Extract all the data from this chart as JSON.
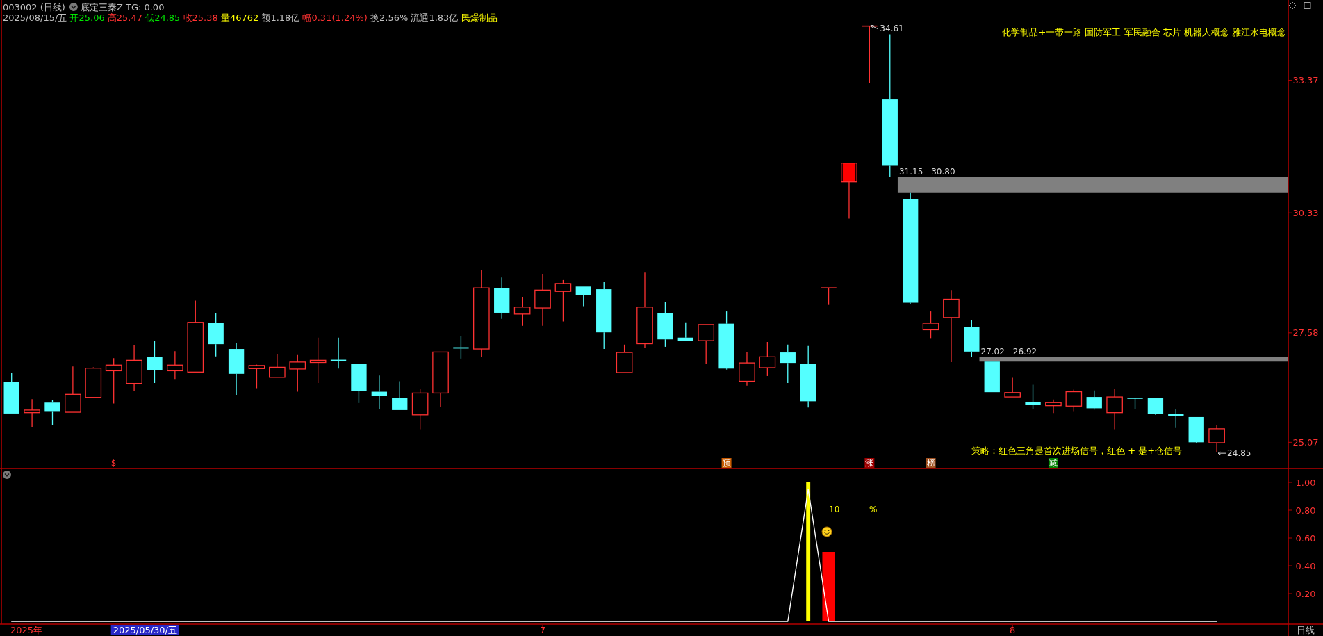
{
  "chart_data": [
    {
      "type": "candlestick",
      "title": "003002 (日线)",
      "subtitle": "2025/08/15/五 开25.06 高25.47 低24.85 收25.38 量46762 额1.18亿 幅0.31(1.24%) 换2.56% 流通1.83亿 民爆制品",
      "categories": [
        null,
        null,
        null,
        null,
        null,
        null,
        null,
        null,
        null,
        null,
        null,
        null,
        null,
        null,
        null,
        null,
        null,
        null,
        null,
        null,
        null,
        null,
        null,
        null,
        null,
        null,
        "7",
        null,
        null,
        null,
        null,
        null,
        null,
        null,
        null,
        null,
        null,
        null,
        null,
        null,
        null,
        null,
        null,
        null,
        null,
        null,
        null,
        null,
        null,
        "8",
        null,
        null,
        null,
        null,
        null,
        null,
        null,
        null,
        null,
        null,
        null,
        null,
        null
      ],
      "ohlc": [
        [
          26.46,
          26.66,
          25.73,
          25.73
        ],
        [
          25.75,
          26.06,
          25.42,
          25.81
        ],
        [
          25.98,
          26.04,
          25.46,
          25.77
        ],
        [
          25.76,
          26.81,
          25.76,
          26.17
        ],
        [
          26.1,
          26.79,
          26.1,
          26.77
        ],
        [
          26.71,
          27.0,
          25.96,
          26.84
        ],
        [
          26.42,
          27.29,
          26.24,
          26.95
        ],
        [
          27.02,
          27.4,
          26.43,
          26.73
        ],
        [
          26.71,
          27.16,
          26.52,
          26.84
        ],
        [
          26.68,
          28.32,
          26.68,
          27.82
        ],
        [
          27.81,
          28.03,
          27.04,
          27.32
        ],
        [
          27.21,
          27.35,
          26.16,
          26.64
        ],
        [
          26.76,
          26.85,
          26.31,
          26.83
        ],
        [
          26.56,
          27.1,
          26.56,
          26.79
        ],
        [
          26.75,
          27.07,
          26.23,
          26.91
        ],
        [
          26.9,
          27.47,
          26.43,
          26.95
        ],
        [
          26.95,
          27.47,
          26.76,
          26.95
        ],
        [
          26.87,
          26.87,
          25.97,
          26.24
        ],
        [
          26.23,
          26.6,
          25.83,
          26.14
        ],
        [
          26.09,
          26.47,
          25.81,
          25.81
        ],
        [
          25.7,
          26.29,
          25.37,
          26.2
        ],
        [
          26.2,
          27.14,
          25.89,
          27.14
        ],
        [
          27.25,
          27.5,
          26.99,
          27.22
        ],
        [
          27.21,
          29.02,
          27.03,
          28.61
        ],
        [
          28.61,
          28.85,
          27.9,
          28.04
        ],
        [
          28.01,
          28.4,
          27.74,
          28.17
        ],
        [
          28.15,
          28.93,
          27.74,
          28.56
        ],
        [
          28.53,
          28.79,
          27.84,
          28.71
        ],
        [
          28.64,
          28.64,
          28.19,
          28.44
        ],
        [
          28.58,
          28.74,
          27.21,
          27.59
        ],
        [
          26.67,
          27.31,
          26.67,
          27.13
        ],
        [
          27.33,
          28.96,
          27.24,
          28.17
        ],
        [
          28.03,
          28.29,
          27.26,
          27.43
        ],
        [
          27.47,
          27.82,
          27.39,
          27.4
        ],
        [
          27.4,
          27.77,
          26.86,
          27.77
        ],
        [
          27.79,
          28.07,
          26.74,
          26.76
        ],
        [
          26.47,
          27.13,
          26.37,
          26.89
        ],
        [
          26.78,
          27.37,
          26.59,
          27.03
        ],
        [
          27.13,
          27.31,
          26.43,
          26.89
        ],
        [
          26.87,
          27.28,
          25.87,
          26.01
        ],
        [
          28.61,
          28.61,
          28.22,
          28.61
        ],
        [
          31.04,
          31.47,
          30.2,
          31.47
        ],
        [
          34.61,
          34.61,
          33.3,
          34.61
        ],
        [
          32.93,
          34.42,
          31.15,
          31.41
        ],
        [
          30.64,
          30.8,
          28.25,
          28.27
        ],
        [
          27.65,
          28.07,
          27.46,
          27.8
        ],
        [
          27.93,
          28.56,
          26.91,
          28.35
        ],
        [
          27.72,
          27.88,
          27.02,
          27.15
        ],
        [
          26.92,
          26.92,
          26.22,
          26.22
        ],
        [
          26.11,
          26.55,
          26.11,
          26.21
        ],
        [
          26.0,
          26.39,
          25.84,
          25.92
        ],
        [
          25.91,
          26.05,
          25.74,
          25.98
        ],
        [
          25.9,
          26.28,
          25.77,
          26.23
        ],
        [
          26.11,
          26.26,
          25.82,
          25.85
        ],
        [
          25.75,
          26.3,
          25.37,
          26.11
        ],
        [
          26.08,
          26.08,
          25.84,
          26.08
        ],
        [
          26.08,
          26.08,
          25.7,
          25.72
        ],
        [
          25.72,
          25.84,
          25.4,
          25.67
        ],
        [
          25.65,
          25.65,
          25.06,
          25.07
        ],
        [
          25.06,
          25.47,
          24.85,
          25.38
        ],
        null,
        null,
        null
      ],
      "colors": [
        "#54ffff",
        "#ff3232",
        "#54ffff",
        "#ff3232",
        "#ff3232",
        "#ff3232",
        "#ff3232",
        "#54ffff",
        "#ff3232",
        "#ff3232",
        "#54ffff",
        "#54ffff",
        "#ff3232",
        "#ff3232",
        "#ff3232",
        "#ff3232",
        "#54ffff",
        "#54ffff",
        "#54ffff",
        "#54ffff",
        "#ff3232",
        "#ff3232",
        "#54ffff",
        "#ff3232",
        "#54ffff",
        "#ff3232",
        "#ff3232",
        "#ff3232",
        "#54ffff",
        "#54ffff",
        "#ff3232",
        "#ff3232",
        "#54ffff",
        "#54ffff",
        "#ff3232",
        "#54ffff",
        "#ff3232",
        "#ff3232",
        "#54ffff",
        "#54ffff",
        "#ff3232",
        "#ff3232",
        "#ff3232",
        "#54ffff",
        "#54ffff",
        "#ff3232",
        "#ff3232",
        "#54ffff",
        "#54ffff",
        "#ff3232",
        "#54ffff",
        "#ff3232",
        "#ff3232",
        "#54ffff",
        "#ff3232",
        "#54ffff",
        "#54ffff",
        "#54ffff",
        "#54ffff",
        "#ff3232",
        null,
        null,
        null
      ],
      "series": [
        {
          "type": "bar",
          "color": "#ff0000",
          "base": [
            null,
            null,
            null,
            null,
            null,
            null,
            null,
            null,
            null,
            null,
            null,
            null,
            null,
            null,
            null,
            null,
            null,
            null,
            null,
            null,
            null,
            null,
            null,
            null,
            null,
            null,
            null,
            null,
            null,
            null,
            null,
            null,
            null,
            null,
            null,
            null,
            null,
            null,
            null,
            null,
            null,
            31.04,
            null,
            null,
            null,
            null,
            null,
            null,
            null,
            null,
            null,
            null,
            null,
            null,
            null,
            null,
            null,
            null,
            null,
            null,
            null,
            null,
            null
          ],
          "values": [
            null,
            null,
            null,
            null,
            null,
            null,
            null,
            null,
            null,
            null,
            null,
            null,
            null,
            null,
            null,
            null,
            null,
            null,
            null,
            null,
            null,
            null,
            null,
            null,
            null,
            null,
            null,
            null,
            null,
            null,
            null,
            null,
            null,
            null,
            null,
            null,
            null,
            null,
            null,
            null,
            null,
            0.43,
            null,
            null,
            null,
            null,
            null,
            null,
            null,
            null,
            null,
            null,
            null,
            null,
            null,
            null,
            null,
            null,
            null,
            null,
            null,
            null,
            null
          ]
        }
      ],
      "ylim": [
        24.47,
        35.21
      ],
      "yticks": [
        25.07,
        27.58,
        30.33,
        33.37
      ],
      "tick_labels": "y",
      "bands": [
        {
          "axis": "y",
          "from": 31.15,
          "to": 30.8,
          "label": "31.15 - 30.80",
          "color": "#808080"
        },
        {
          "axis": "y",
          "from": 27.02,
          "to": 26.92,
          "label": "27.02 - 26.92",
          "color": "#808080"
        }
      ],
      "annotations": [
        "底定三秦Z TG: 0.00",
        "化学制品+一带一路 国防军工 军民融合 芯片 机器人概念 雅江水电概念",
        "34.61",
        "24.85",
        "策略：红色三角是首次进场信号，红色 + 是+仓信号",
        "$",
        "预",
        "涨",
        "榜",
        "减"
      ]
    },
    {
      "type": "bar",
      "categories": [
        null,
        null,
        null,
        null,
        null,
        null,
        null,
        null,
        null,
        null,
        null,
        null,
        null,
        null,
        null,
        null,
        null,
        null,
        null,
        null,
        null,
        null,
        null,
        null,
        null,
        null,
        "7",
        null,
        null,
        null,
        null,
        null,
        null,
        null,
        null,
        null,
        null,
        null,
        null,
        null,
        null,
        null,
        null,
        null,
        null,
        null,
        null,
        null,
        null,
        "8",
        null,
        null,
        null,
        null,
        null,
        null,
        null,
        null,
        null,
        null,
        null,
        null,
        null
      ],
      "series": [
        {
          "type": "line",
          "color": "#ffffff",
          "values": [
            0,
            0,
            0,
            0,
            0,
            0,
            0,
            0,
            0,
            0,
            0,
            0,
            0,
            0,
            0,
            0,
            0,
            0,
            0,
            0,
            0,
            0,
            0,
            0,
            0,
            0,
            0,
            0,
            0,
            0,
            0,
            0,
            0,
            0,
            0,
            0,
            0,
            0,
            0,
            0.95,
            0,
            0,
            0,
            0,
            0,
            0,
            0,
            0,
            0,
            0,
            0,
            0,
            0,
            0,
            0,
            0,
            0,
            0,
            0,
            0,
            null,
            null,
            null
          ]
        },
        {
          "type": "bar",
          "color": "#ffff00",
          "values": [
            null,
            null,
            null,
            null,
            null,
            null,
            null,
            null,
            null,
            null,
            null,
            null,
            null,
            null,
            null,
            null,
            null,
            null,
            null,
            null,
            null,
            null,
            null,
            null,
            null,
            null,
            null,
            null,
            null,
            null,
            null,
            null,
            null,
            null,
            null,
            null,
            null,
            null,
            null,
            1.0,
            null,
            null,
            null,
            null,
            null,
            null,
            null,
            null,
            null,
            null,
            null,
            null,
            null,
            null,
            null,
            null,
            null,
            null,
            null,
            null,
            null,
            null,
            null
          ]
        },
        {
          "type": "bar",
          "color": "#ff0000",
          "values": [
            null,
            null,
            null,
            null,
            null,
            null,
            null,
            null,
            null,
            null,
            null,
            null,
            null,
            null,
            null,
            null,
            null,
            null,
            null,
            null,
            null,
            null,
            null,
            null,
            null,
            null,
            null,
            null,
            null,
            null,
            null,
            null,
            null,
            null,
            null,
            null,
            null,
            null,
            null,
            null,
            0.5,
            null,
            null,
            null,
            null,
            null,
            null,
            null,
            null,
            null,
            null,
            null,
            null,
            null,
            null,
            null,
            null,
            null,
            null,
            null,
            null,
            null,
            null
          ]
        }
      ],
      "ylim": [
        -0.02,
        1.1
      ],
      "yticks": [
        {
          "value": 0.2,
          "label": "0.20"
        },
        {
          "value": 0.4,
          "label": "0.40"
        },
        {
          "value": 0.6,
          "label": "0.60"
        },
        {
          "value": 0.8,
          "label": "0.80"
        },
        {
          "value": 1.0,
          "label": "1.00"
        }
      ],
      "annotations": [
        "10",
        "%",
        "日线",
        "2025年",
        "2025/05/30/五"
      ]
    }
  ]
}
